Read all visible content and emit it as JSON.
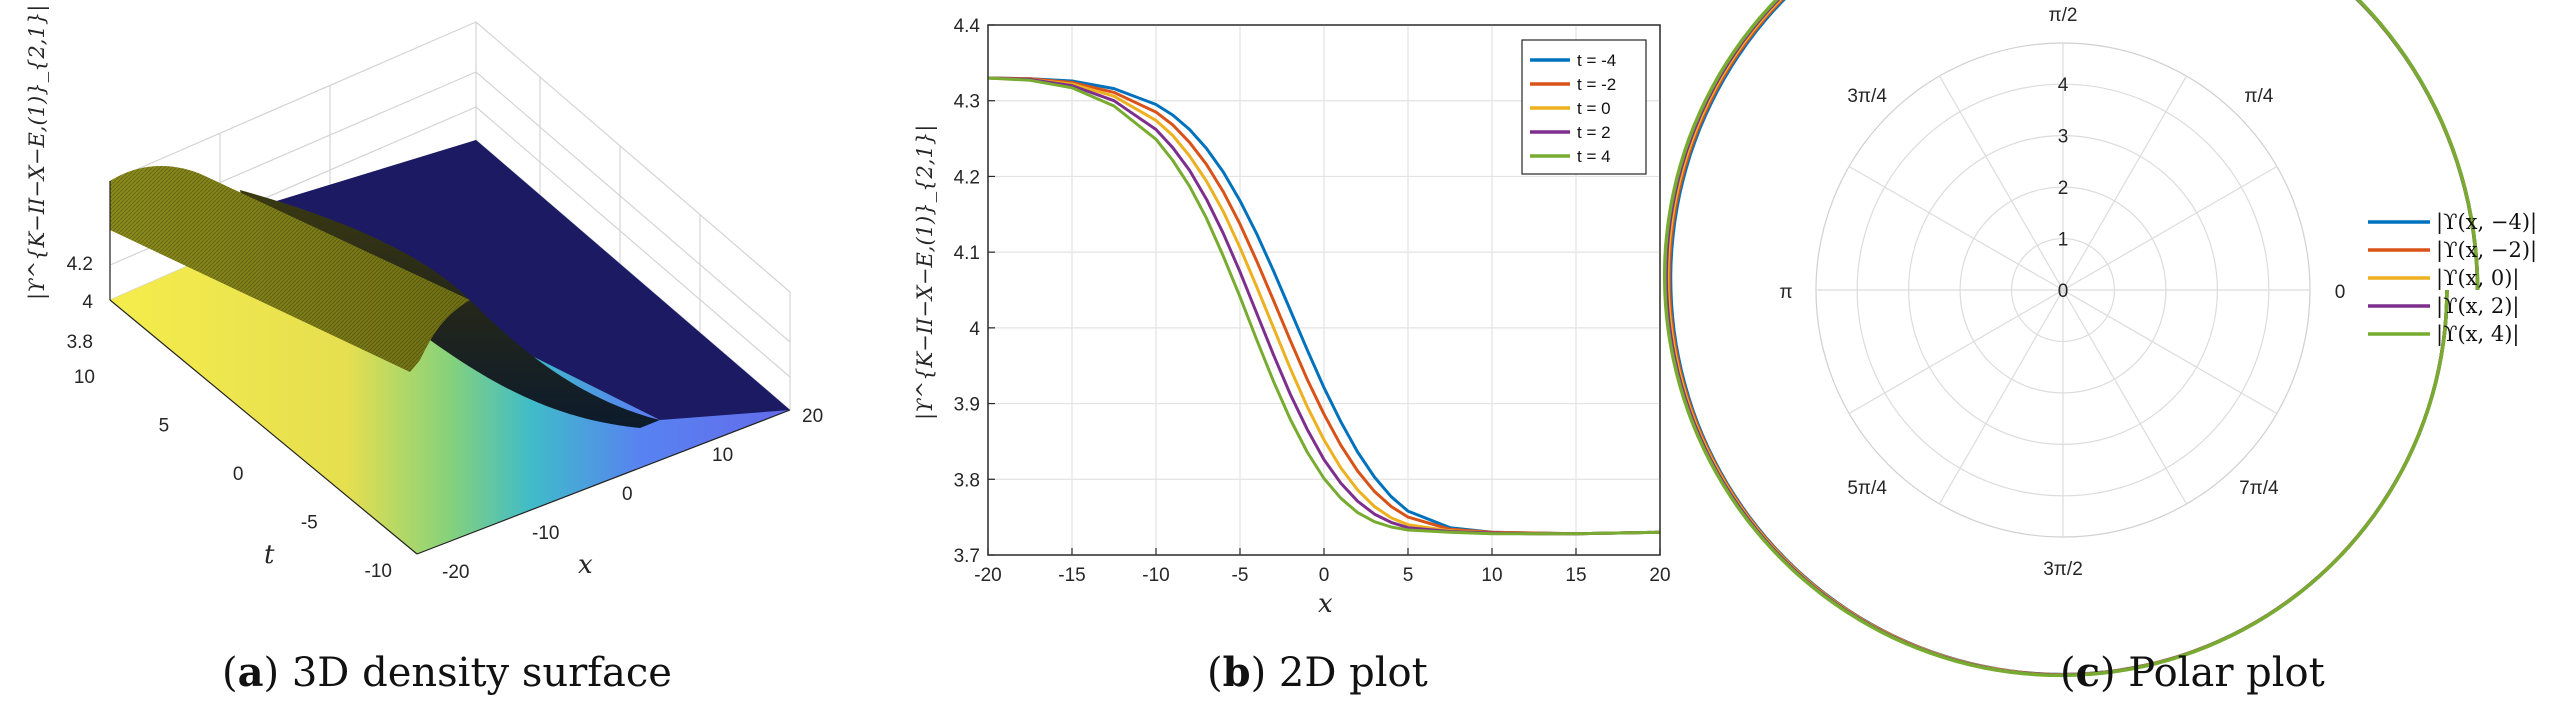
{
  "captions": {
    "a": {
      "letter": "a",
      "text": "3D density surface"
    },
    "b": {
      "letter": "b",
      "text": "2D plot"
    },
    "c": {
      "letter": "c",
      "text": "Polar plot"
    }
  },
  "chart_data": [
    {
      "type": "surface",
      "panel": "a",
      "zlabel": "|ϒ^{K−II−X−E,(1)}_{2,1}|",
      "xlabel": "x",
      "ylabel": "t",
      "x_ticks": [
        "-20",
        "-10",
        "0",
        "10",
        "20"
      ],
      "t_ticks": [
        "-10",
        "-5",
        "0",
        "5",
        "10"
      ],
      "z_ticks": [
        "3.8",
        "4",
        "4.2"
      ],
      "xlim": [
        -20,
        20
      ],
      "tlim": [
        -10,
        10
      ],
      "zlim": [
        3.7,
        4.4
      ],
      "z_plateau_high": 4.33,
      "z_plateau_low": 3.73,
      "colormap": [
        "#3a1a86",
        "#3f6ff0",
        "#33b0d4",
        "#43c49a",
        "#8ed065",
        "#d9d63a",
        "#f5ec42"
      ]
    },
    {
      "type": "line",
      "panel": "b",
      "xlabel": "x",
      "ylabel": "|ϒ^{K−II−X−E,(1)}_{2,1}|",
      "xlim": [
        -20,
        20
      ],
      "ylim": [
        3.7,
        4.4
      ],
      "x_ticks": [
        "-20",
        "-15",
        "-10",
        "-5",
        "0",
        "5",
        "10",
        "15",
        "20"
      ],
      "y_ticks": [
        "3.7",
        "3.8",
        "3.9",
        "4",
        "4.1",
        "4.2",
        "4.3",
        "4.4"
      ],
      "grid": true,
      "legend_position": "top-right",
      "x": [
        -20,
        -17.5,
        -15,
        -12.5,
        -10,
        -9,
        -8,
        -7,
        -6,
        -5,
        -4,
        -3,
        -2,
        -1,
        0,
        1,
        2,
        3,
        4,
        5,
        7.5,
        10,
        12.5,
        15,
        17.5,
        20
      ],
      "series": [
        {
          "name": "t = -4",
          "color": "#0072BD",
          "values": [
            4.33,
            4.329,
            4.326,
            4.316,
            4.295,
            4.281,
            4.262,
            4.237,
            4.206,
            4.168,
            4.124,
            4.075,
            4.023,
            3.971,
            3.921,
            3.876,
            3.836,
            3.803,
            3.777,
            3.758,
            3.736,
            3.73,
            3.729,
            3.728,
            3.729,
            3.73
          ]
        },
        {
          "name": "t = -2",
          "color": "#D95319",
          "values": [
            4.33,
            4.329,
            4.324,
            4.311,
            4.285,
            4.268,
            4.245,
            4.216,
            4.18,
            4.137,
            4.088,
            4.036,
            3.983,
            3.932,
            3.886,
            3.845,
            3.811,
            3.784,
            3.764,
            3.75,
            3.734,
            3.73,
            3.729,
            3.728,
            3.729,
            3.73
          ]
        },
        {
          "name": "t = 0",
          "color": "#EDB120",
          "values": [
            4.33,
            4.328,
            4.322,
            4.306,
            4.274,
            4.254,
            4.227,
            4.194,
            4.154,
            4.106,
            4.054,
            4.0,
            3.946,
            3.896,
            3.852,
            3.815,
            3.786,
            3.764,
            3.749,
            3.74,
            3.732,
            3.729,
            3.728,
            3.728,
            3.729,
            3.73
          ]
        },
        {
          "name": "t = 2",
          "color": "#7E2F8E",
          "values": [
            4.33,
            4.328,
            4.32,
            4.3,
            4.262,
            4.238,
            4.208,
            4.17,
            4.125,
            4.074,
            4.019,
            3.964,
            3.912,
            3.866,
            3.826,
            3.795,
            3.771,
            3.754,
            3.743,
            3.736,
            3.731,
            3.729,
            3.728,
            3.728,
            3.729,
            3.73
          ]
        },
        {
          "name": "t = 4",
          "color": "#77AC30",
          "values": [
            4.33,
            4.327,
            4.317,
            4.293,
            4.249,
            4.221,
            4.187,
            4.145,
            4.095,
            4.041,
            3.984,
            3.929,
            3.879,
            3.836,
            3.801,
            3.775,
            3.756,
            3.744,
            3.737,
            3.733,
            3.73,
            3.728,
            3.728,
            3.728,
            3.729,
            3.73
          ]
        }
      ]
    },
    {
      "type": "polar",
      "panel": "c",
      "r_ticks": [
        "0",
        "1",
        "2",
        "3",
        "4"
      ],
      "rlim": [
        0,
        4.8
      ],
      "theta_labels": [
        "0",
        "π/4",
        "π/2",
        "3π/4",
        "π",
        "5π/4",
        "3π/2",
        "7π/4"
      ],
      "legend_position": "right",
      "theta_range_deg": [
        0,
        360
      ],
      "r_start": 3.73,
      "r_end": 4.33,
      "series": [
        {
          "name": "|ϒ(x, −4)|",
          "color": "#0072BD"
        },
        {
          "name": "|ϒ(x, −2)|",
          "color": "#D95319"
        },
        {
          "name": "|ϒ(x, 0)|",
          "color": "#EDB120"
        },
        {
          "name": "|ϒ(x, 2)|",
          "color": "#7E2F8E"
        },
        {
          "name": "|ϒ(x, 4)|",
          "color": "#77AC30"
        }
      ]
    }
  ]
}
